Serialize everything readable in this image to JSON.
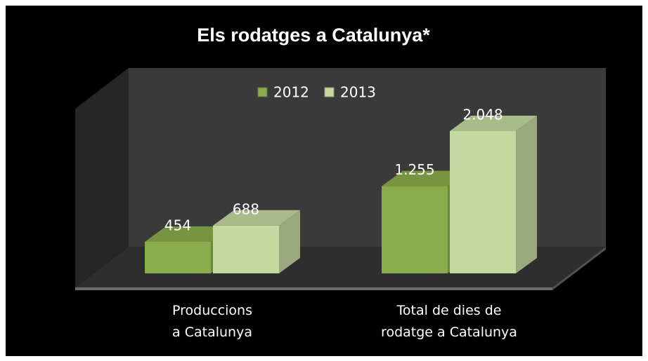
{
  "chart_data": {
    "type": "bar3d",
    "title": "Els rodatges a Catalunya*",
    "categories": [
      "Produccions\na Catalunya",
      "Total de dies de\nrodatge a Catalunya"
    ],
    "series": [
      {
        "name": "2012",
        "color": "#8aac4a",
        "values": [
          454,
          1255
        ],
        "value_labels": [
          "454",
          "1.255"
        ]
      },
      {
        "name": "2013",
        "color": "#c5d9a0",
        "values": [
          688,
          2048
        ],
        "value_labels": [
          "688",
          "2.048"
        ]
      }
    ],
    "legend": "top"
  }
}
